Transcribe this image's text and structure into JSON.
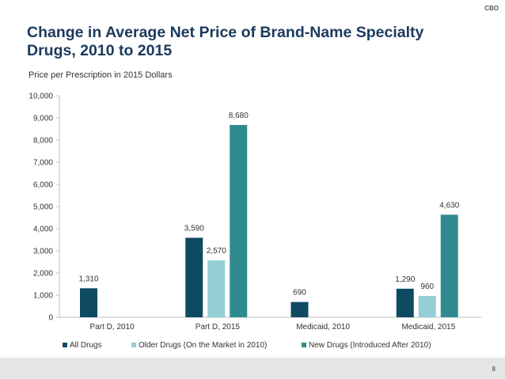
{
  "header": {
    "org": "CBO"
  },
  "title": "Change in Average Net Price of Brand-Name Specialty Drugs, 2010 to 2015",
  "footer": {
    "page": "8"
  },
  "colors": {
    "all": "#0f4a63",
    "older": "#94cfd5",
    "new": "#2f8b8f",
    "title": "#1b3a5c"
  },
  "chart_data": {
    "type": "bar",
    "title": "Change in Average Net Price of Brand-Name Specialty Drugs, 2010 to 2015",
    "ylabel": "Price per Prescription in 2015 Dollars",
    "xlabel": "",
    "ylim": [
      0,
      10000
    ],
    "yticks": [
      "0",
      "1,000",
      "2,000",
      "3,000",
      "4,000",
      "5,000",
      "6,000",
      "7,000",
      "8,000",
      "9,000",
      "10,000"
    ],
    "ytick_values": [
      0,
      1000,
      2000,
      3000,
      4000,
      5000,
      6000,
      7000,
      8000,
      9000,
      10000
    ],
    "categories": [
      "Part D, 2010",
      "Part D, 2015",
      "Medicaid, 2010",
      "Medicaid, 2015"
    ],
    "series": [
      {
        "name": "All Drugs",
        "values": [
          1310,
          3590,
          690,
          1290
        ],
        "labels": [
          "1,310",
          "3,590",
          "690",
          "1,290"
        ]
      },
      {
        "name": "Older Drugs (On the Market in 2010)",
        "values": [
          null,
          2570,
          null,
          960
        ],
        "labels": [
          "",
          "2,570",
          "",
          "960"
        ]
      },
      {
        "name": "New Drugs (Introduced After 2010)",
        "values": [
          null,
          8680,
          null,
          4630
        ],
        "labels": [
          "",
          "8,680",
          "",
          "4,630"
        ]
      }
    ],
    "legend": "bottom",
    "grid": false
  }
}
